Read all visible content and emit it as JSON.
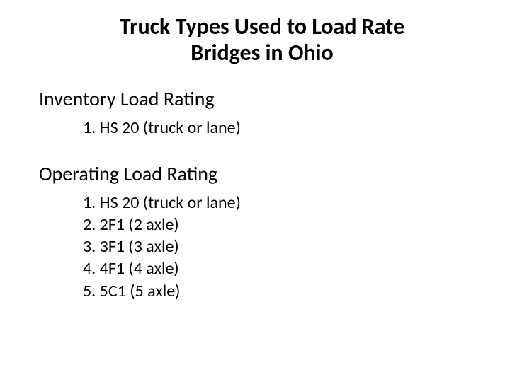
{
  "title": {
    "line1": "Truck Types Used to Load Rate",
    "line2": "Bridges in Ohio",
    "fontsize": 32,
    "fontweight": "bold",
    "color": "#000000"
  },
  "sections": [
    {
      "heading": "Inventory Load Rating",
      "heading_fontsize": 28,
      "items": [
        "1. HS 20 (truck or lane)"
      ],
      "item_fontsize": 24
    },
    {
      "heading": "Operating Load Rating",
      "heading_fontsize": 28,
      "items": [
        "1. HS 20 (truck or lane)",
        "2. 2F1 (2 axle)",
        "3. 3F1 (3 axle)",
        "4. 4F1 (4 axle)",
        "5. 5C1 (5 axle)"
      ],
      "item_fontsize": 24
    }
  ],
  "background_color": "#ffffff",
  "text_color": "#000000"
}
